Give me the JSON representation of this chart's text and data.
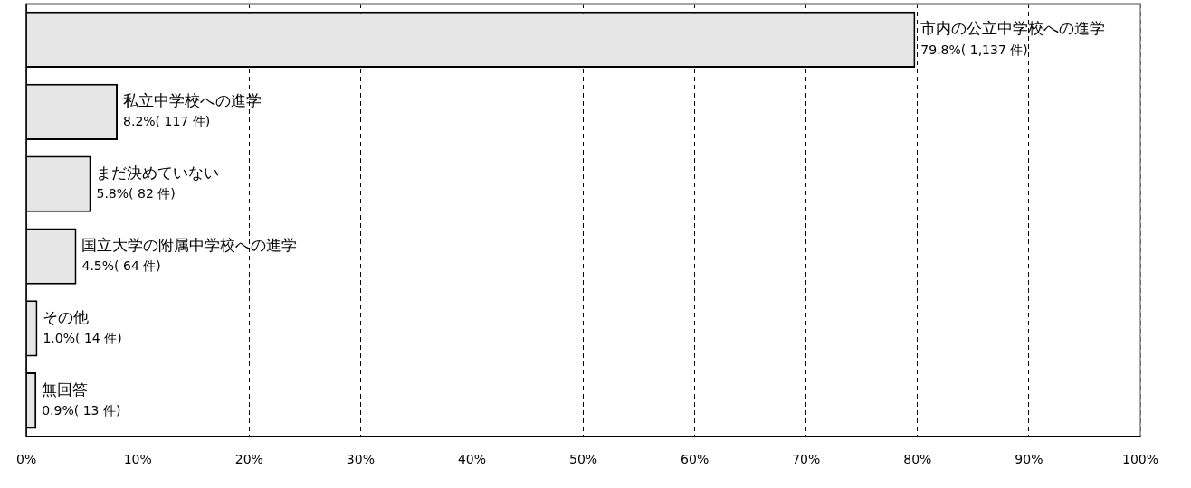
{
  "chart_data": {
    "type": "bar",
    "orientation": "horizontal",
    "categories": [
      "市内の公立中学校への進学",
      "私立中学校への進学",
      "まだ決めていない",
      "国立大学の附属中学校への進学",
      "その他",
      "無回答"
    ],
    "values": [
      79.8,
      8.2,
      5.8,
      4.5,
      1.0,
      0.9
    ],
    "value_labels": [
      "79.8%( 1,137 件)",
      "8.2%( 117 件)",
      "5.8%( 82 件)",
      "4.5%( 64 件)",
      "1.0%( 14 件)",
      "0.9%( 13 件)"
    ],
    "color": "#e6e6e6",
    "xlim": [
      0,
      100
    ],
    "xticks": [
      {
        "value": 0,
        "label": "0%"
      },
      {
        "value": 10,
        "label": "10%"
      },
      {
        "value": 20,
        "label": "20%"
      },
      {
        "value": 30,
        "label": "30%"
      },
      {
        "value": 40,
        "label": "40%"
      },
      {
        "value": 50,
        "label": "50%"
      },
      {
        "value": 60,
        "label": "60%"
      },
      {
        "value": 70,
        "label": "70%"
      },
      {
        "value": 80,
        "label": "80%"
      },
      {
        "value": 90,
        "label": "90%"
      },
      {
        "value": 100,
        "label": "100%"
      }
    ],
    "grid": "x",
    "tick_labels": "x",
    "legend": false
  }
}
